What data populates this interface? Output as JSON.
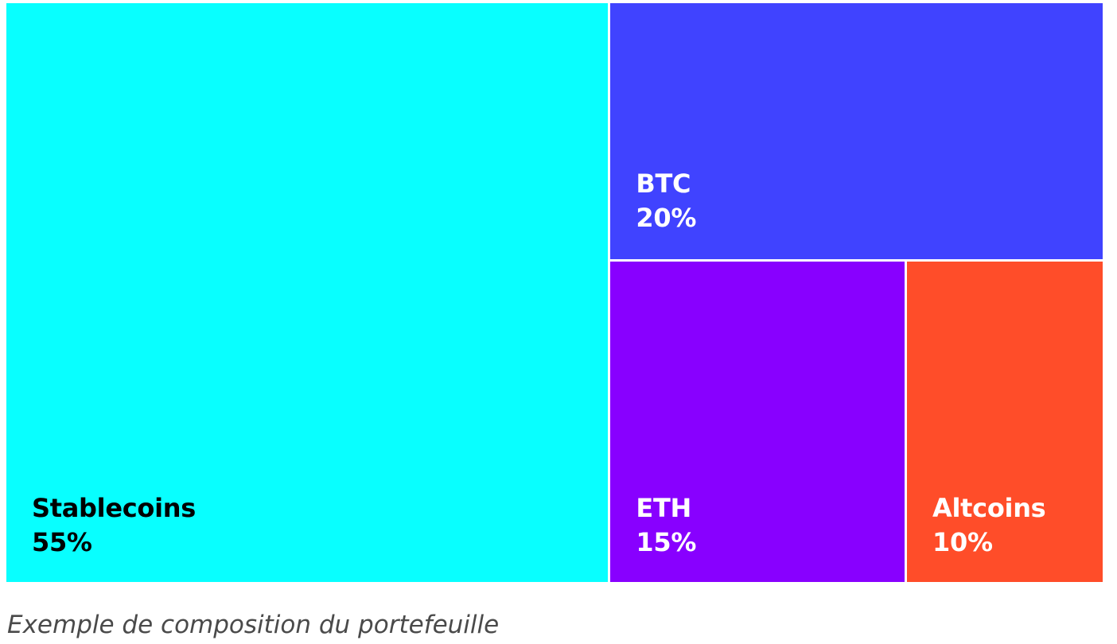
{
  "chart_data": {
    "type": "treemap",
    "title": "",
    "items": [
      {
        "name": "Stablecoins",
        "value": 55,
        "value_label": "55%",
        "color": "#08FFFF",
        "text_color": "#000000"
      },
      {
        "name": "BTC",
        "value": 20,
        "value_label": "20%",
        "color": "#4043FF",
        "text_color": "#FFFFFF"
      },
      {
        "name": "ETH",
        "value": 15,
        "value_label": "15%",
        "color": "#8800FF",
        "text_color": "#FFFFFF"
      },
      {
        "name": "Altcoins",
        "value": 10,
        "value_label": "10%",
        "color": "#FF4D29",
        "text_color": "#FFFFFF"
      }
    ]
  },
  "caption": "Exemple de composition du portefeuille"
}
